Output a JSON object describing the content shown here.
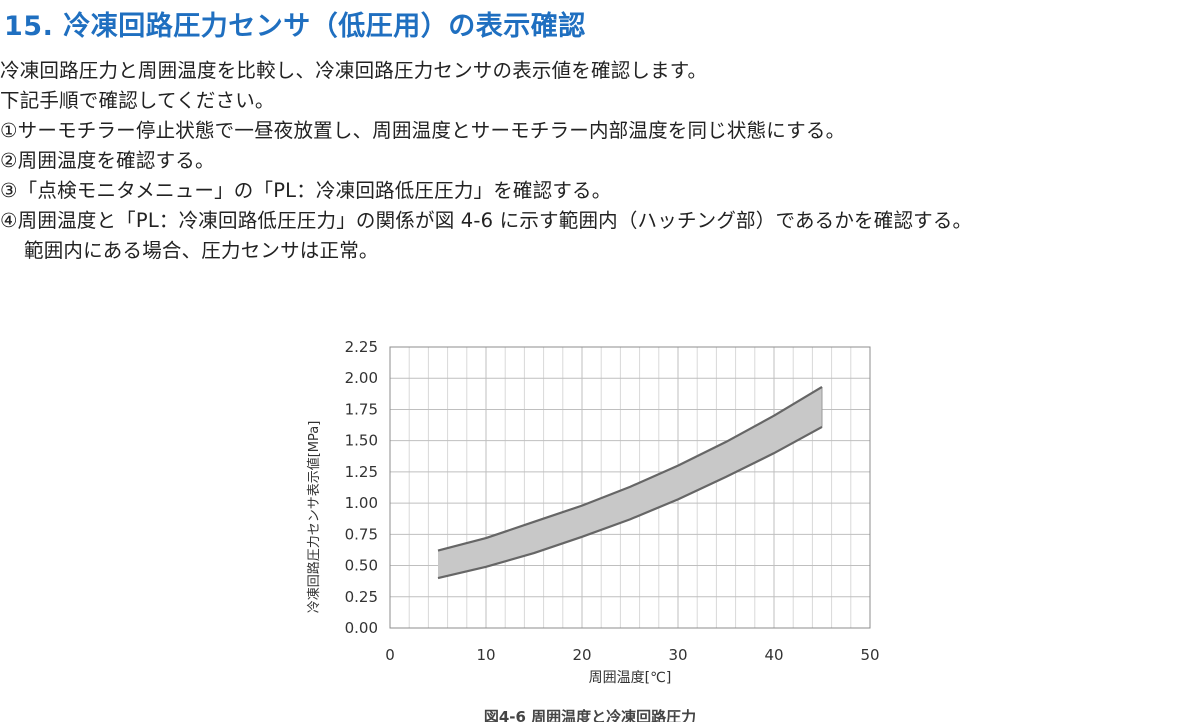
{
  "heading": "15. 冷凍回路圧力センサ（低圧用）の表示確認",
  "paragraphs": [
    "冷凍回路圧力と周囲温度を比較し、冷凍回路圧力センサの表示値を確認します。",
    "下記手順で確認してください。",
    "①サーモチラー停止状態で一昼夜放置し、周囲温度とサーモチラー内部温度を同じ状態にする。",
    "②周囲温度を確認する。",
    "③「点検モニタメニュー」の「PL：冷凍回路低圧圧力」を確認する。",
    "④周囲温度と「PL：冷凍回路低圧圧力」の関係が図 4-6 に示す範囲内（ハッチング部）であるかを確認する。",
    "範囲内にある場合、圧力センサは正常。"
  ],
  "colors": {
    "heading": "#1f6fc0",
    "band_fill": "#c8c8c8",
    "band_line": "#666666",
    "grid": "#d9d9d9"
  },
  "chart_data": {
    "type": "area",
    "caption": "図4-6 周囲温度と冷凍回路圧力",
    "xlabel": "周囲温度[℃]",
    "ylabel": "冷凍回路圧力センサ表示値[MPa]",
    "xlim": [
      0,
      50
    ],
    "ylim": [
      0,
      2.25
    ],
    "x_ticks": [
      "0",
      "10",
      "20",
      "30",
      "40",
      "50"
    ],
    "y_ticks": [
      "0.00",
      "0.25",
      "0.50",
      "0.75",
      "1.00",
      "1.25",
      "1.50",
      "1.75",
      "2.00",
      "2.25"
    ],
    "grid": true,
    "series": [
      {
        "x": [
          5,
          10,
          15,
          20,
          25,
          30,
          35,
          40,
          45
        ],
        "values": [
          0.62,
          0.72,
          0.85,
          0.98,
          1.13,
          1.3,
          1.49,
          1.7,
          1.93
        ]
      },
      {
        "x": [
          5,
          10,
          15,
          20,
          25,
          30,
          35,
          40,
          45
        ],
        "values": [
          0.4,
          0.49,
          0.6,
          0.73,
          0.87,
          1.03,
          1.21,
          1.4,
          1.61
        ]
      }
    ]
  }
}
